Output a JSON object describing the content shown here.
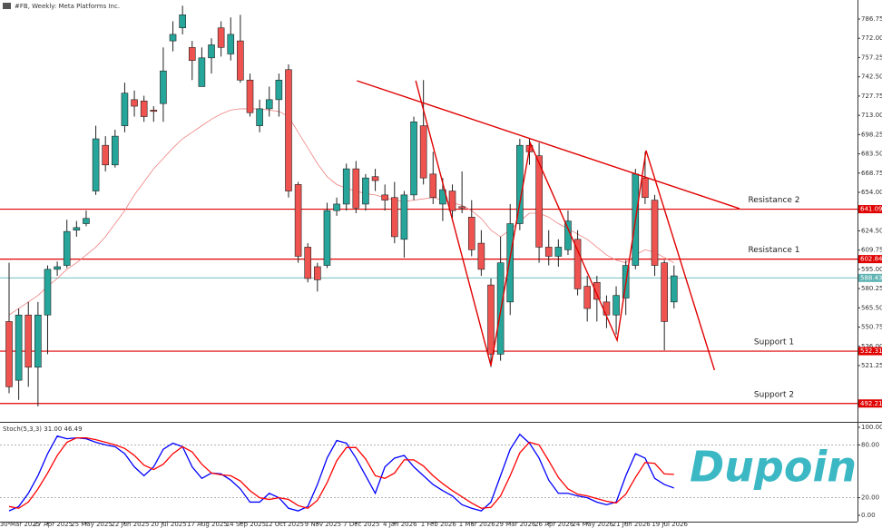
{
  "chart_data": [
    {
      "type": "candlestick",
      "title": "#FB, Weekly: Meta Platforms Inc.",
      "categories": [
        "30 Mar 2025",
        null,
        null,
        null,
        "27 Apr 2025",
        null,
        null,
        null,
        "25 May 2025",
        null,
        null,
        null,
        "22 Jun 2025",
        null,
        null,
        null,
        "20 Jul 2025",
        null,
        null,
        null,
        "17 Aug 2025",
        null,
        null,
        null,
        "14 Sep 2025",
        null,
        null,
        null,
        "12 Oct 2025",
        null,
        null,
        null,
        "9 Nov 2025",
        null,
        null,
        null,
        "7 Dec 2025",
        null,
        null,
        null,
        "4 Jan 2026",
        null,
        null,
        null,
        "1 Feb 2026",
        null,
        null,
        null,
        "1 Mar 2026",
        null,
        null,
        null,
        "29 Mar 2026",
        null,
        null,
        null,
        "26 Apr 2026",
        null,
        null,
        null,
        "24 May 2026",
        null,
        null,
        null,
        "21 Jun 2026",
        null,
        null,
        null,
        "19 Jul 2026",
        null
      ],
      "open": [
        555,
        510,
        560,
        520,
        560,
        595,
        598,
        625,
        630,
        655,
        690,
        675,
        705,
        725,
        724,
        717,
        722,
        770,
        780,
        765,
        735,
        757,
        780,
        760,
        770,
        740,
        705,
        718,
        725,
        748,
        660,
        612,
        597,
        598,
        640,
        645,
        672,
        645,
        666,
        652,
        650,
        618,
        652,
        705,
        668,
        645,
        655,
        643,
        635,
        615,
        583,
        530,
        570,
        630,
        690,
        682,
        612,
        605,
        610,
        618,
        582,
        585,
        570,
        560,
        573,
        598,
        665,
        648,
        600,
        570
      ],
      "high": [
        600,
        565,
        570,
        570,
        598,
        601,
        633,
        632,
        640,
        705,
        697,
        702,
        738,
        732,
        728,
        720,
        765,
        785,
        797,
        770,
        765,
        772,
        785,
        788,
        790,
        745,
        725,
        735,
        745,
        752,
        662,
        615,
        600,
        646,
        650,
        676,
        678,
        668,
        672,
        660,
        662,
        655,
        712,
        740,
        685,
        665,
        660,
        670,
        648,
        625,
        588,
        620,
        645,
        695,
        695,
        692,
        625,
        618,
        640,
        625,
        590,
        590,
        575,
        582,
        602,
        672,
        685,
        652,
        602,
        598
      ],
      "low": [
        500,
        495,
        505,
        490,
        530,
        590,
        596,
        620,
        628,
        652,
        670,
        673,
        700,
        712,
        708,
        708,
        708,
        762,
        775,
        740,
        735,
        745,
        758,
        755,
        738,
        712,
        700,
        712,
        712,
        650,
        600,
        585,
        578,
        596,
        636,
        640,
        638,
        640,
        655,
        640,
        615,
        604,
        648,
        660,
        645,
        632,
        632,
        638,
        605,
        590,
        520,
        525,
        560,
        625,
        675,
        600,
        598,
        597,
        606,
        575,
        555,
        555,
        550,
        545,
        560,
        595,
        645,
        590,
        533,
        565
      ],
      "close": [
        505,
        560,
        520,
        560,
        595,
        597,
        624,
        627,
        634,
        695,
        675,
        697,
        730,
        720,
        712,
        716,
        747,
        775,
        790,
        755,
        757,
        767,
        765,
        775,
        740,
        715,
        718,
        725,
        740,
        655,
        605,
        588,
        587,
        640,
        645,
        672,
        642,
        665,
        663,
        648,
        620,
        652,
        708,
        665,
        650,
        656,
        640,
        642,
        610,
        595,
        530,
        600,
        630,
        690,
        685,
        612,
        605,
        612,
        632,
        580,
        565,
        572,
        560,
        575,
        598,
        668,
        650,
        598,
        555,
        590
      ],
      "up_color": "#26a69a",
      "down_color": "#ef5350",
      "moving_average": [
        560,
        565,
        570,
        575,
        582,
        588,
        595,
        600,
        606,
        612,
        620,
        630,
        640,
        652,
        662,
        672,
        680,
        688,
        695,
        700,
        705,
        710,
        714,
        717,
        718,
        718,
        718,
        717,
        716,
        712,
        700,
        688,
        676,
        666,
        660,
        657,
        655,
        653,
        652,
        650,
        648,
        647,
        648,
        649,
        650,
        648,
        646,
        644,
        640,
        634,
        625,
        620,
        625,
        632,
        638,
        638,
        635,
        630,
        626,
        622,
        618,
        612,
        606,
        602,
        600,
        606,
        610,
        608,
        604,
        600
      ],
      "ma_color": "#f08080",
      "ylim": [
        478.14,
        801.35
      ],
      "yticks": [
        786.75,
        {
          "value": 772,
          "label": "772.00"
        },
        757.25,
        {
          "value": 742.5,
          "label": "742.50"
        },
        727.75,
        {
          "value": 713,
          "label": "713.00"
        },
        698.25,
        {
          "value": 683.5,
          "label": "683.50"
        },
        668.75,
        {
          "value": 654,
          "label": "654.00"
        },
        639.25,
        {
          "value": 624.5,
          "label": "624.50"
        },
        609.75,
        {
          "value": 595,
          "label": "595.00"
        },
        580.25,
        {
          "value": 565.5,
          "label": "565.50"
        },
        550.75,
        {
          "value": 536,
          "label": "536.00"
        },
        521.25
      ],
      "levels": [
        {
          "name": "Resistance 2",
          "value": 641.09
        },
        {
          "name": "Resistance 1",
          "value": 602.84
        },
        {
          "name": "Support 1",
          "value": 532.31
        },
        {
          "name": "Support 2",
          "value": 492.21
        }
      ],
      "level_color": "#e00000",
      "current_price": 588.43,
      "current_color": "#5fb3b3",
      "trendlines": [
        {
          "x": [
            36.1,
            75.8
          ],
          "y": [
            739.5,
            641.5
          ]
        },
        {
          "x": [
            42.2,
            50,
            54.1,
            63.1,
            66.1,
            73.2
          ],
          "y": [
            739.5,
            521.25,
            691.5,
            540.7,
            686,
            517.8
          ]
        }
      ],
      "logo": "Dupoin"
    },
    {
      "type": "stochastic",
      "title": "Stoch(5,3,3) 31.00 46.49",
      "series": [
        {
          "color": "#0000ff",
          "values": [
            5,
            10,
            25,
            45,
            70,
            90,
            87,
            88,
            87,
            83,
            80,
            78,
            70,
            55,
            45,
            55,
            75,
            82,
            78,
            55,
            42,
            48,
            47,
            40,
            30,
            15,
            15,
            25,
            20,
            8,
            5,
            10,
            35,
            65,
            85,
            82,
            65,
            45,
            25,
            55,
            65,
            68,
            55,
            45,
            35,
            28,
            22,
            12,
            8,
            5,
            15,
            45,
            75,
            92,
            82,
            65,
            40,
            25,
            25,
            22,
            20,
            15,
            12,
            15,
            45,
            70,
            65,
            42,
            35,
            31
          ]
        },
        {
          "color": "#ff0000",
          "values": [
            10,
            8,
            15,
            30,
            48,
            68,
            83,
            88,
            88,
            86,
            83,
            80,
            76,
            68,
            57,
            52,
            58,
            70,
            78,
            72,
            58,
            48,
            46,
            45,
            39,
            28,
            20,
            18,
            20,
            18,
            11,
            8,
            17,
            37,
            62,
            77,
            77,
            64,
            45,
            42,
            48,
            63,
            63,
            56,
            45,
            36,
            28,
            21,
            14,
            8,
            9,
            22,
            45,
            71,
            83,
            80,
            62,
            43,
            30,
            24,
            22,
            19,
            16,
            14,
            24,
            43,
            60,
            59,
            47,
            46.49
          ]
        }
      ],
      "ylim": [
        0,
        100
      ],
      "yticks": [
        {
          "value": 100,
          "label": "100.00"
        },
        {
          "value": 80,
          "label": "80.00"
        },
        {
          "value": 20,
          "label": "20.00"
        },
        {
          "value": 0,
          "label": "0.00"
        }
      ]
    }
  ]
}
